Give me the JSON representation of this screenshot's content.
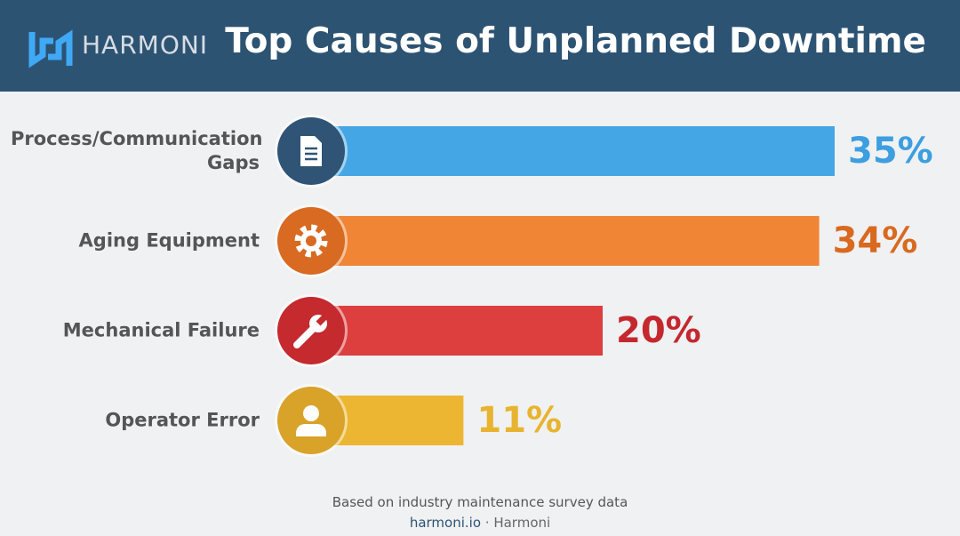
{
  "header": {
    "logo": "HARMONI"
  },
  "chart_data": {
    "type": "bar",
    "orientation": "horizontal",
    "title": "Top Causes of Unplanned Downtime",
    "categories": [
      "Process/Communication Gaps",
      "Aging Equipment",
      "Mechanical Failure",
      "Operator Error"
    ],
    "values": [
      35,
      34,
      20,
      11
    ],
    "value_labels": [
      "35%",
      "34%",
      "20%",
      "11%"
    ],
    "colors": [
      "#45a6e5",
      "#ef8535",
      "#dd3e3e",
      "#edb632"
    ]
  },
  "footer": {
    "source": "Based on industry maintenance survey data",
    "site": "harmoni.io",
    "credit": "· Harmoni"
  }
}
